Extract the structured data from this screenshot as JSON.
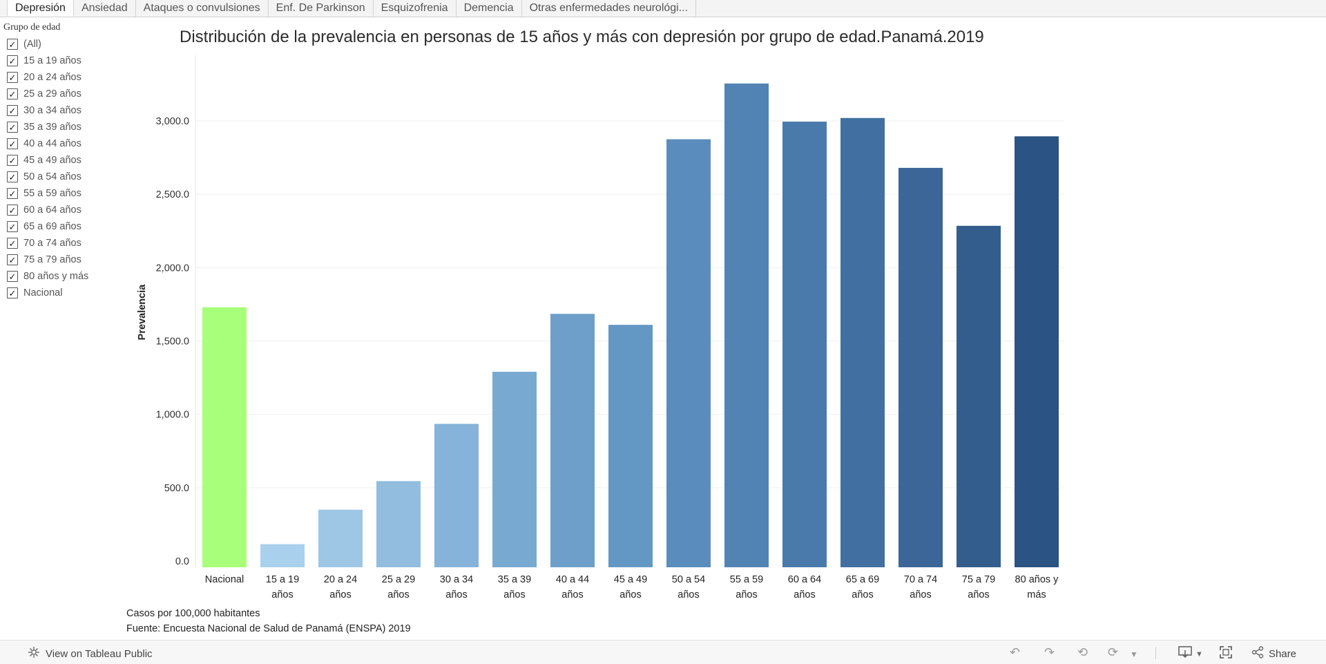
{
  "tabs": [
    {
      "label": "Depresión",
      "active": true
    },
    {
      "label": "Ansiedad",
      "active": false
    },
    {
      "label": "Ataques o convulsiones",
      "active": false
    },
    {
      "label": "Enf. De Parkinson",
      "active": false
    },
    {
      "label": "Esquizofrenia",
      "active": false
    },
    {
      "label": "Demencia",
      "active": false
    },
    {
      "label": "Otras enfermedades neurológi...",
      "active": false
    }
  ],
  "filter": {
    "title": "Grupo de edad",
    "items": [
      {
        "label": "(All)",
        "checked": true
      },
      {
        "label": "15 a 19 años",
        "checked": true
      },
      {
        "label": "20 a 24 años",
        "checked": true
      },
      {
        "label": "25 a 29 años",
        "checked": true
      },
      {
        "label": "30 a 34 años",
        "checked": true
      },
      {
        "label": "35 a 39 años",
        "checked": true
      },
      {
        "label": "40 a 44 años",
        "checked": true
      },
      {
        "label": "45 a 49 años",
        "checked": true
      },
      {
        "label": "50 a 54 años",
        "checked": true
      },
      {
        "label": "55 a 59 años",
        "checked": true
      },
      {
        "label": "60 a 64 años",
        "checked": true
      },
      {
        "label": "65 a 69 años",
        "checked": true
      },
      {
        "label": "70 a 74 años",
        "checked": true
      },
      {
        "label": "75 a 79 años",
        "checked": true
      },
      {
        "label": "80 años y más",
        "checked": true
      },
      {
        "label": "Nacional",
        "checked": true
      }
    ]
  },
  "chart_data": {
    "type": "bar",
    "title": "Distribución de la prevalencia en personas de 15 años y más con depresión por grupo de edad.Panamá.2019",
    "xlabel": "",
    "ylabel": "Prevalencia",
    "ylim": [
      0,
      3300
    ],
    "yticks": [
      0,
      500,
      1000,
      1500,
      2000,
      2500,
      3000
    ],
    "ytick_labels": [
      "0.0",
      "500.0",
      "1,000.0",
      "1,500.0",
      "2,000.0",
      "2,500.0",
      "3,000.0"
    ],
    "grid": true,
    "categories": [
      [
        "Nacional"
      ],
      [
        "15 a 19",
        "años"
      ],
      [
        "20 a 24",
        "años"
      ],
      [
        "25 a 29",
        "años"
      ],
      [
        "30 a 34",
        "años"
      ],
      [
        "35 a 39",
        "años"
      ],
      [
        "40 a 44",
        "años"
      ],
      [
        "45 a 49",
        "años"
      ],
      [
        "50 a 54",
        "años"
      ],
      [
        "55 a 59",
        "años"
      ],
      [
        "60 a 64",
        "años"
      ],
      [
        "65 a 69",
        "años"
      ],
      [
        "70 a 74",
        "años"
      ],
      [
        "75 a 79",
        "años"
      ],
      [
        "80 años y",
        "más"
      ]
    ],
    "values": [
      1730,
      115,
      350,
      545,
      935,
      1290,
      1685,
      1610,
      2875,
      3255,
      2995,
      3020,
      2680,
      2285,
      2895
    ],
    "colors": [
      "#a8ff7a",
      "#a9d0ec",
      "#9ec6e5",
      "#92bddf",
      "#85b3d9",
      "#78a9d1",
      "#6d9fca",
      "#6398c5",
      "#5a8dbd",
      "#5183b4",
      "#4a7aac",
      "#426fa2",
      "#3b6697",
      "#335d8d",
      "#2b5383"
    ]
  },
  "notes": [
    "Casos por 100,000 habitantes",
    "Fuente: Encuesta Nacional de Salud de Panamá (ENSPA) 2019"
  ],
  "toolbar": {
    "view_label": "View on Tableau Public",
    "share_label": "Share",
    "icons": [
      "undo-icon",
      "redo-icon",
      "revert-icon",
      "refresh-icon",
      "download-icon",
      "fullscreen-icon",
      "share-icon"
    ]
  }
}
